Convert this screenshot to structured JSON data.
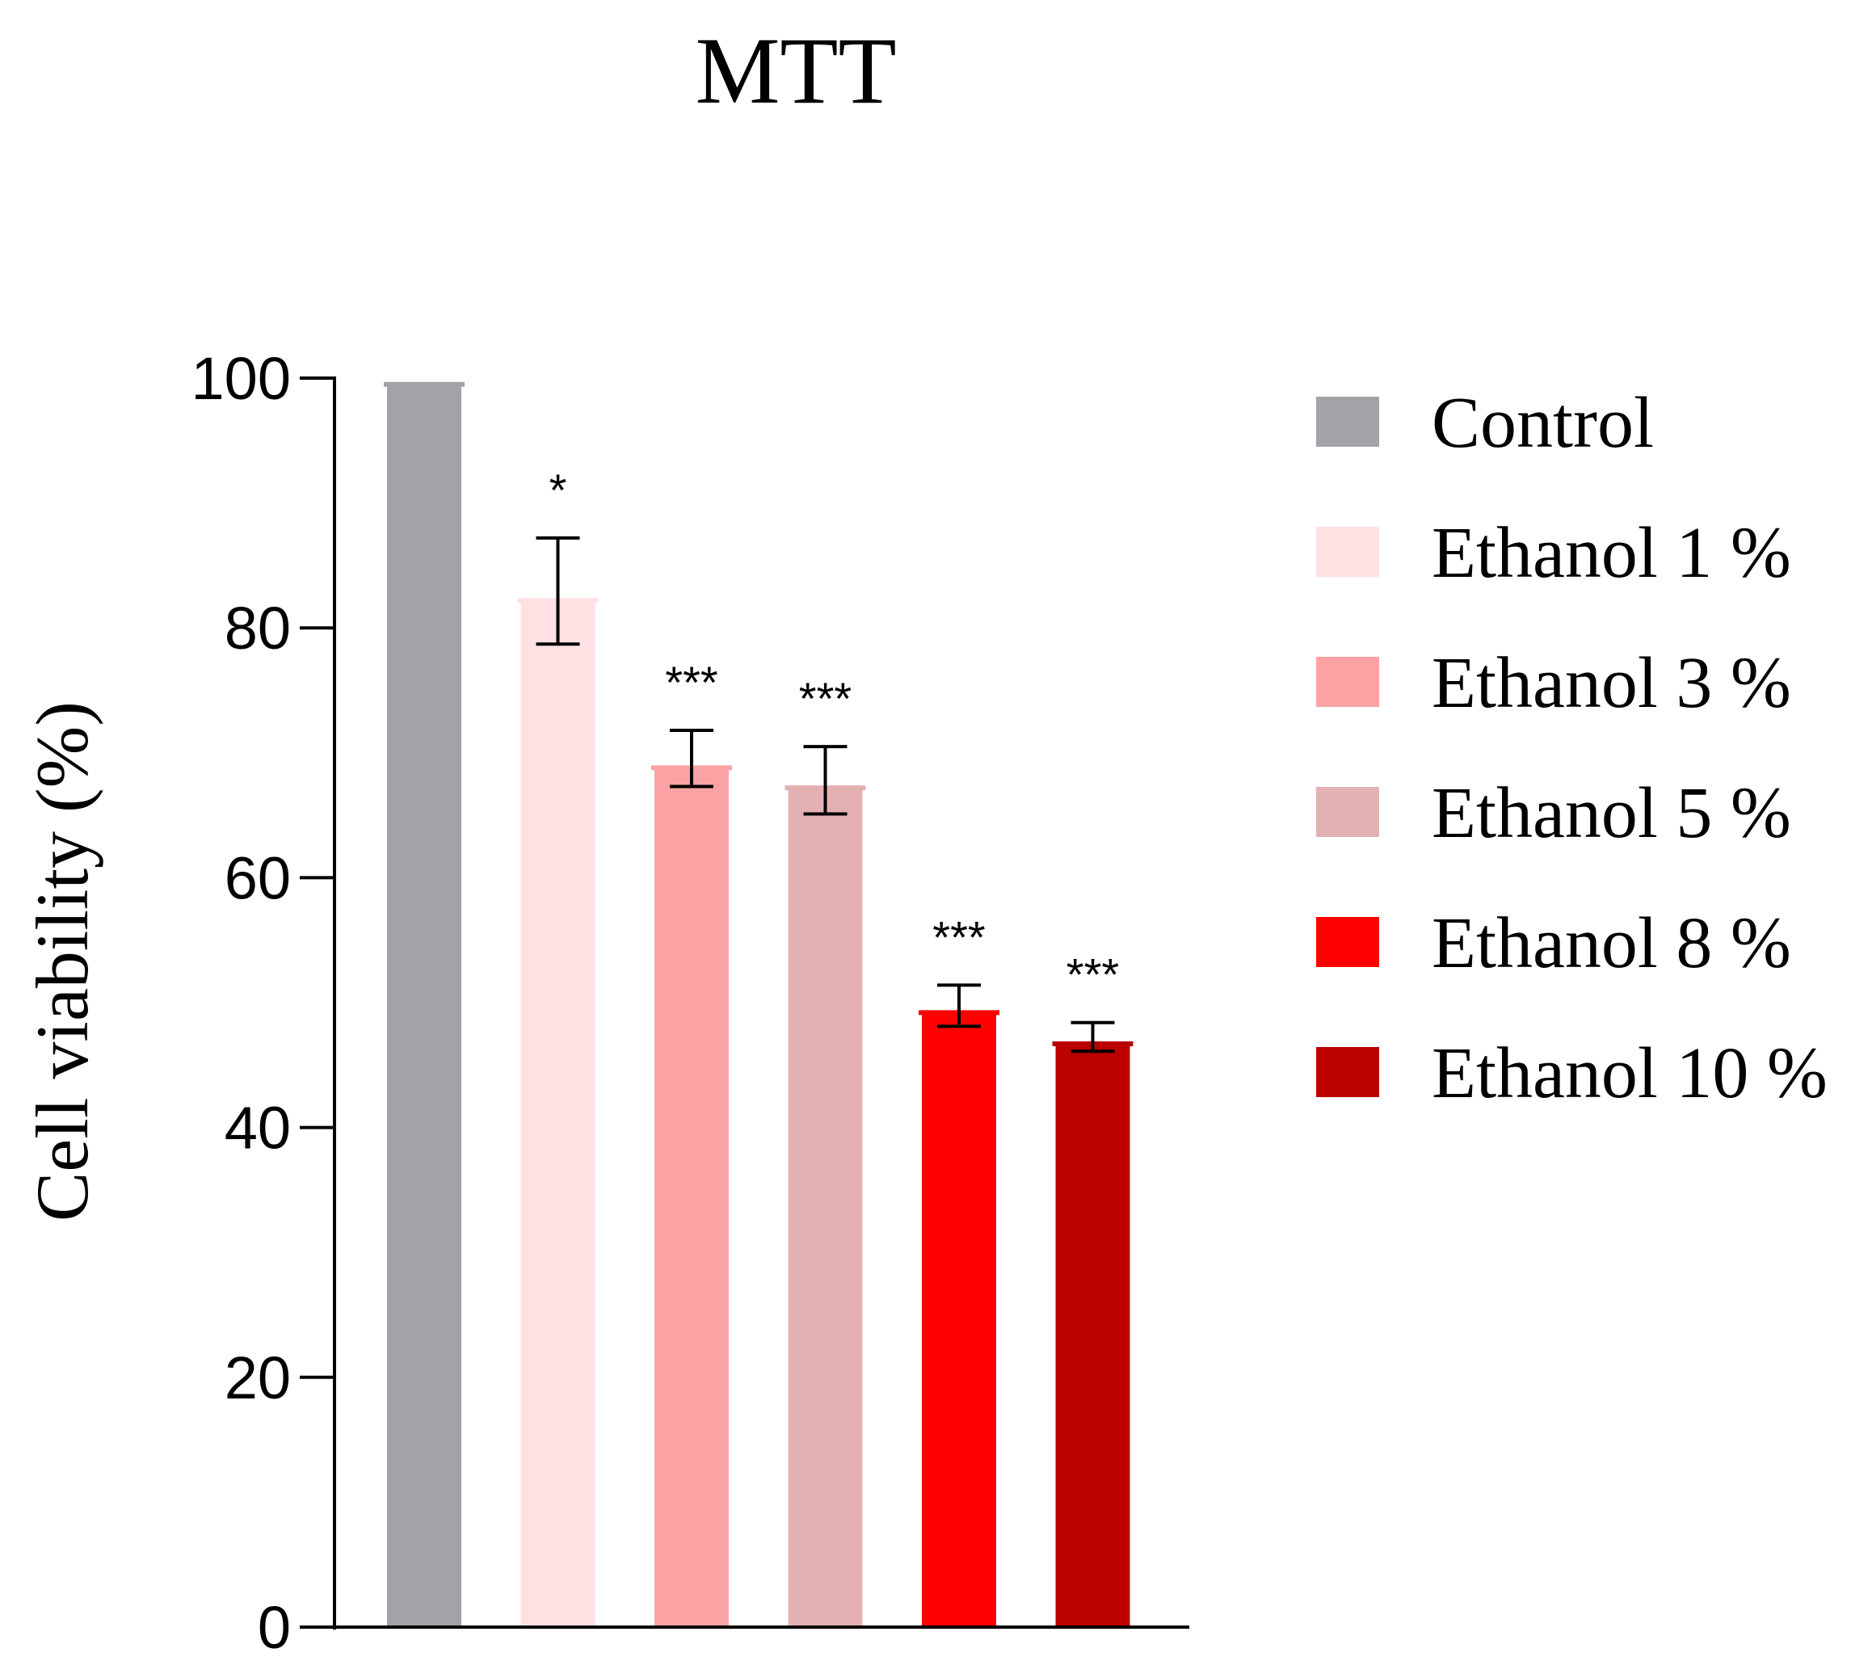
{
  "chart_data": {
    "type": "bar",
    "title": "MTT",
    "xlabel": "",
    "ylabel": "Cell viability (%)",
    "ylim": [
      0,
      100
    ],
    "yticks": [
      0,
      20,
      40,
      60,
      80,
      100
    ],
    "ytick_labels": [
      "0",
      "20",
      "40",
      "60",
      "80",
      "100"
    ],
    "categories": [
      "Control",
      "Ethanol 1 %",
      "Ethanol 3 %",
      "Ethanol 5 %",
      "Ethanol 8 %",
      "Ethanol 10 %"
    ],
    "values": [
      99.5,
      82.2,
      68.8,
      67.2,
      49.2,
      46.7
    ],
    "error_low": [
      null,
      78.7,
      67.3,
      65.1,
      48.1,
      46.1
    ],
    "error_high": [
      null,
      87.2,
      71.8,
      70.5,
      51.4,
      48.4
    ],
    "significance": [
      "",
      "*",
      "***",
      "***",
      "***",
      "***"
    ],
    "colors": [
      "#A3A2A7",
      "#FFE1E3",
      "#FBA3A4",
      "#E4B1B2",
      "#FF0000",
      "#BB0000"
    ],
    "legend_position": "right",
    "grid": false
  }
}
